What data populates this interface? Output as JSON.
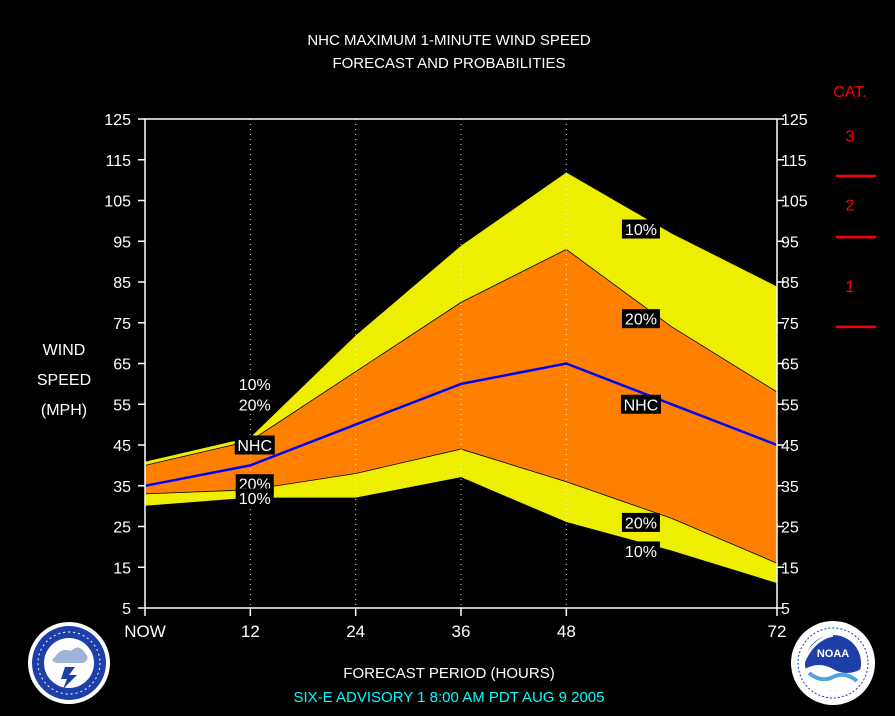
{
  "chart_data": {
    "type": "area",
    "title_line1": "NHC MAXIMUM 1-MINUTE WIND SPEED",
    "title_line2": "FORECAST AND PROBABILITIES",
    "ylabel_lines": [
      "WIND",
      "SPEED",
      "(MPH)"
    ],
    "xlabel": "FORECAST PERIOD (HOURS)",
    "footer": "SIX-E   ADVISORY  1 8:00  AM  PDT  AUG  9  2005",
    "ylim": [
      5,
      125
    ],
    "yticks": [
      5,
      15,
      25,
      35,
      45,
      55,
      65,
      75,
      85,
      95,
      105,
      115,
      125
    ],
    "xlim": [
      0,
      72
    ],
    "x_ticks": [
      {
        "value": 0,
        "label": "NOW"
      },
      {
        "value": 12,
        "label": "12"
      },
      {
        "value": 24,
        "label": "24"
      },
      {
        "value": 36,
        "label": "36"
      },
      {
        "value": 48,
        "label": "48"
      },
      {
        "value": 72,
        "label": "72"
      }
    ],
    "grid_x": [
      12,
      24,
      36,
      48
    ],
    "x": [
      0,
      12,
      24,
      36,
      48,
      60,
      72
    ],
    "series": [
      {
        "key": "upper10",
        "values": [
          41,
          47,
          72,
          94,
          112,
          97,
          84
        ]
      },
      {
        "key": "upper20",
        "values": [
          40,
          46,
          63,
          80,
          93,
          74,
          58
        ]
      },
      {
        "key": "nhc",
        "name": "NHC",
        "values": [
          35,
          40,
          50,
          60,
          65,
          55,
          45
        ]
      },
      {
        "key": "lower20",
        "values": [
          33,
          34,
          38,
          44,
          36,
          27,
          16
        ]
      },
      {
        "key": "lower10",
        "values": [
          30,
          32,
          32,
          37,
          26,
          19,
          11
        ]
      }
    ],
    "band_colors": {
      "outer": "#eeee00",
      "inner": "#ff8000",
      "nhc_line": "#0000ff",
      "edge": "#000000"
    },
    "annotations": [
      {
        "text": "10%",
        "x": 12.5,
        "y": 60
      },
      {
        "text": "20%",
        "x": 12.5,
        "y": 55
      },
      {
        "text": "NHC",
        "x": 12.5,
        "y": 45
      },
      {
        "text": "20%",
        "x": 12.5,
        "y": 35.5
      },
      {
        "text": "10%",
        "x": 12.5,
        "y": 32
      },
      {
        "text": "10%",
        "x": 56.5,
        "y": 98
      },
      {
        "text": "20%",
        "x": 56.5,
        "y": 76
      },
      {
        "text": "NHC",
        "x": 56.5,
        "y": 55
      },
      {
        "text": "20%",
        "x": 56.5,
        "y": 26
      },
      {
        "text": "10%",
        "x": 56.5,
        "y": 19
      }
    ],
    "category_scale": {
      "title": "CAT.",
      "labels": [
        {
          "text": "3",
          "y": 121
        },
        {
          "text": "2",
          "y": 104
        },
        {
          "text": "1",
          "y": 84
        }
      ],
      "boundaries": [
        111,
        96,
        74
      ],
      "color": "#ff0000"
    }
  },
  "logos": {
    "left": {
      "icon": "nws-logo-icon",
      "text": "NATIONAL WEATHER SERVICE"
    },
    "right": {
      "icon": "noaa-logo-icon",
      "text": "NOAA"
    }
  }
}
